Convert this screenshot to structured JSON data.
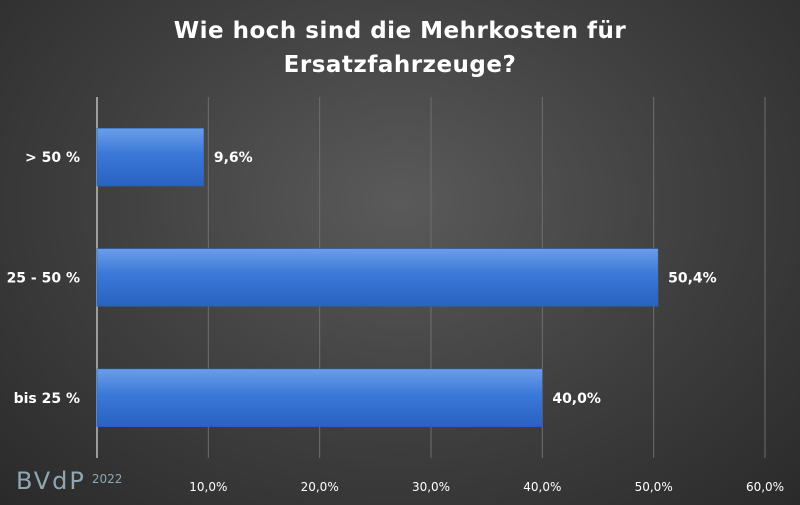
{
  "chart_data": {
    "type": "bar",
    "orientation": "horizontal",
    "title_line1": "Wie hoch sind die Mehrkosten für",
    "title_line2": "Ersatzfahrzeuge?",
    "categories": [
      "> 50 %",
      "25 - 50 %",
      "bis 25 %"
    ],
    "values": [
      9.6,
      50.4,
      40.0
    ],
    "value_labels": [
      "9,6%",
      "50,4%",
      "40,0%"
    ],
    "xlim": [
      0,
      60
    ],
    "x_ticks": [
      10,
      20,
      30,
      40,
      50,
      60
    ],
    "x_tick_labels": [
      "10,0%",
      "20,0%",
      "30,0%",
      "40,0%",
      "50,0%",
      "60,0%"
    ],
    "grid": "vertical",
    "bar_color": "#3c78d8"
  },
  "logo": {
    "mark": "BVdP",
    "year": "2022"
  }
}
